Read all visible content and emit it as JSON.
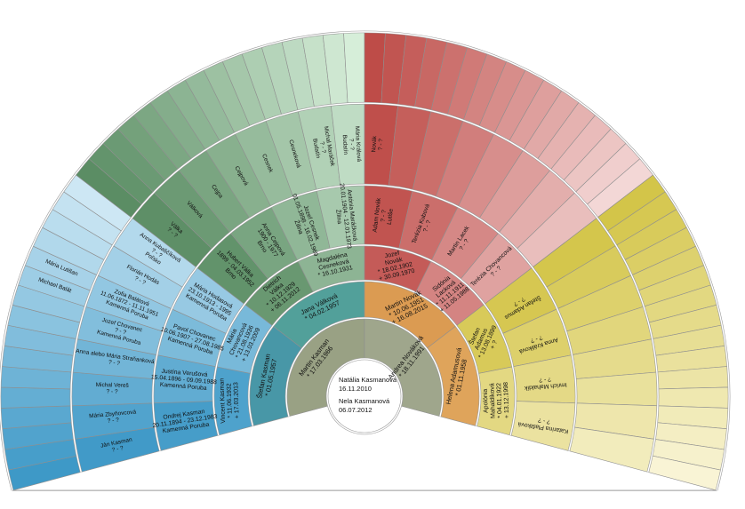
{
  "chart_data": {
    "type": "fan-genealogy-chart",
    "span_deg": 210,
    "start_deg": 195,
    "generations": 6,
    "center_panel": {
      "lines": [
        "Natália Kasmanová",
        "16.11.2010",
        "Nela Kasmanová",
        "06.07.2012"
      ]
    },
    "palette": {
      "background": "#ffffff",
      "ring1": [
        "#99a184",
        "#9fa68c"
      ],
      "ring2": [
        "#4897a7",
        "#52a09a",
        "#db9b52",
        "#dfa45b"
      ],
      "quadrants": [
        {
          "name": "paternal-grandfather-line",
          "dark": "#3996c5",
          "pale": "#d2eaf6"
        },
        {
          "name": "paternal-grandmother-line",
          "dark": "#578a60",
          "pale": "#daf1dd"
        },
        {
          "name": "maternal-grandfather-line",
          "dark": "#bc4743",
          "pale": "#f5dcdb"
        },
        {
          "name": "maternal-grandmother-line",
          "dark": "#d2c344",
          "pale": "#faf6da"
        }
      ],
      "sector_line": "#8f8f8f",
      "ring_line": "#9a9a9a",
      "text": "#111111"
    },
    "rings": [
      {
        "generation": 1,
        "count": 2,
        "persons": {
          "0": {
            "name_lines": [
              "Martin Kasman"
            ],
            "dates": [
              "* 17.03.1966"
            ]
          },
          "1": {
            "name_lines": [
              "Andrea Nováková"
            ],
            "dates": [
              "* 18.11.1991"
            ]
          }
        }
      },
      {
        "generation": 2,
        "count": 4,
        "persons": {
          "0": {
            "name_lines": [
              "Štefan Kasman"
            ],
            "dates": [
              "* 01.05.1957"
            ]
          },
          "1": {
            "name_lines": [
              "Jana Válková"
            ],
            "dates": [
              "* 04.02.1957"
            ]
          },
          "2": {
            "name_lines": [
              "Martin Novák"
            ],
            "dates": [
              "* 10.06.1951",
              "+ 16.08.2015"
            ]
          },
          "3": {
            "name_lines": [
              "Helena Adamusová"
            ],
            "dates": [
              "* 01.11.1958"
            ]
          }
        }
      },
      {
        "generation": 3,
        "count": 8,
        "persons": {
          "0": {
            "name_lines": [
              "Vincent Kasman"
            ],
            "dates": [
              "* 11.06.1932",
              "+ 17.03.2013"
            ]
          },
          "1": {
            "name_lines": [
              "Mária",
              "Chovancová"
            ],
            "dates": [
              "* 21.08.1936",
              "+ 13.03.2009"
            ]
          },
          "2": {
            "name_lines": [
              "Dietrich",
              "Válka"
            ],
            "dates": [
              "* 10.12.1929",
              "+ 06.11.2012"
            ]
          },
          "3": {
            "name_lines": [
              "Magdaléna",
              "Cesneková"
            ],
            "dates": [
              "* 16.10.1931"
            ]
          },
          "4": {
            "name_lines": [
              "Jozef",
              "Novák"
            ],
            "dates": [
              "* 18.02.1902",
              "+ 30.09.1970"
            ]
          },
          "5": {
            "name_lines": [
              "Sidónia",
              "Lacková"
            ],
            "dates": [
              "* 11.11.1911",
              "+ 11.05.1988"
            ]
          },
          "6": {
            "name_lines": [
              "Štefan",
              "Adamus"
            ],
            "dates": [
              "* 13.08.1899",
              "+ ?"
            ]
          },
          "7": {
            "name_lines": [
              "Apolónia",
              "Mahaldíková"
            ],
            "dates": [
              "* 04.01.1922",
              "+ 13.12.1998"
            ]
          }
        }
      },
      {
        "generation": 4,
        "count": 16,
        "persons": {
          "0": {
            "name_lines": [
              "Ondrej Kasman"
            ],
            "dates": [
              "20.11.1894 - 23.12.1983"
            ],
            "place": "Kamenná Poruba"
          },
          "1": {
            "name_lines": [
              "Justína Verušová"
            ],
            "dates": [
              "15.04.1896 - 09.09.1988"
            ],
            "place": "Kamenná Poruba"
          },
          "2": {
            "name_lines": [
              "Pavol Chovanec"
            ],
            "dates": [
              "10.06.1907 - 27.08.1985"
            ],
            "place": "Kamenná Poruba"
          },
          "3": {
            "name_lines": [
              "Mária Hodasová"
            ],
            "dates": [
              "23.10.1913 - 1995"
            ],
            "place": "Kamenná Poruba"
          },
          "4": {
            "name_lines": [
              "Hubert Válka"
            ],
            "dates": [
              "1899 - 04.03.1952"
            ],
            "place": "Brno"
          },
          "5": {
            "name_lines": [
              "Anna Cejpová"
            ],
            "dates": [
              "1900 - 1977"
            ],
            "place": "Brno"
          },
          "6": {
            "name_lines": [
              "Jozef Cesnek"
            ],
            "dates": [
              "01.05.1898 - 16.02.1969"
            ],
            "place": "Žilina"
          },
          "7": {
            "name_lines": [
              "Antónia Maráčková"
            ],
            "dates": [
              "20.01.1904 - 12.01.1973"
            ],
            "place": "Žilina"
          },
          "8": {
            "name_lines": [
              "Adam Novák"
            ],
            "dates": [
              "? - ?"
            ],
            "place": "Lutiše"
          },
          "9": {
            "name_lines": [
              "Terézia Kubová"
            ],
            "dates": [
              "? - ?"
            ]
          },
          "10": {
            "name_lines": [
              "Martin Lacek"
            ],
            "dates": [
              "? - ?"
            ]
          },
          "11": {
            "name_lines": [
              "Terézia Chovancová"
            ],
            "dates": [
              "? - ?"
            ]
          },
          "12": {
            "name_lines": [
              "Štefan Adamus"
            ],
            "dates": [
              "? - ?"
            ]
          },
          "13": {
            "name_lines": [
              "Anna Králiková"
            ],
            "dates": [
              "? - ?"
            ]
          },
          "14": {
            "name_lines": [
              "Imrich Mahaldík"
            ],
            "dates": [
              "? - ?"
            ]
          },
          "15": {
            "name_lines": [
              "Katarína Plaštková"
            ],
            "dates": [
              "? - ?"
            ]
          }
        }
      },
      {
        "generation": 5,
        "count": 32,
        "persons": {
          "0": {
            "name_lines": [
              "Ján Kasman"
            ],
            "dates": [
              "? - ?"
            ]
          },
          "1": {
            "name_lines": [
              "Mária Zbyňovcová"
            ],
            "dates": [
              "? - ?"
            ]
          },
          "2": {
            "name_lines": [
              "Michal Vereš"
            ],
            "dates": [
              "? - ?"
            ]
          },
          "3": {
            "name_lines": [
              "Anna alebo Mária Straňanková"
            ],
            "dates": [
              "? - ?"
            ]
          },
          "4": {
            "name_lines": [
              "Jozef Chovanec"
            ],
            "dates": [
              "? - ?"
            ],
            "place": "Kamenná Poruba"
          },
          "5": {
            "name_lines": [
              "Zofia Balátová"
            ],
            "dates": [
              "11.06.1872 - 11.11.1951"
            ],
            "place": "Kamenná Poruba"
          },
          "6": {
            "name_lines": [
              "Florián Hodás"
            ],
            "dates": [
              "? - ?"
            ]
          },
          "7": {
            "name_lines": [
              "Anna Kubaščíková"
            ],
            "dates": [
              "? - ?"
            ],
            "place": "Poľsko"
          },
          "8": {
            "name_lines": [
              "Válka"
            ],
            "dates": [
              "? - ?"
            ]
          },
          "9": {
            "name_lines": [
              "Válková"
            ]
          },
          "10": {
            "name_lines": [
              "Cejpa"
            ]
          },
          "11": {
            "name_lines": [
              "Cejpová"
            ]
          },
          "12": {
            "name_lines": [
              "Cesnek"
            ]
          },
          "13": {
            "name_lines": [
              "Cesneková"
            ]
          },
          "14": {
            "name_lines": [
              "Michal Maráček"
            ],
            "dates": [
              "? - ?"
            ],
            "place": "Budatín"
          },
          "15": {
            "name_lines": [
              "Mária Králová"
            ],
            "dates": [
              "? - ?"
            ],
            "place": "Budatín"
          },
          "16": {
            "name_lines": [
              "Novák"
            ],
            "dates": [
              "? - ?"
            ]
          }
        }
      },
      {
        "generation": 6,
        "count": 64,
        "persons": {
          "10": {
            "name_lines": [
              "Michael Balát"
            ]
          },
          "11": {
            "name_lines": [
              "Mária Lutišan"
            ]
          }
        }
      }
    ]
  }
}
